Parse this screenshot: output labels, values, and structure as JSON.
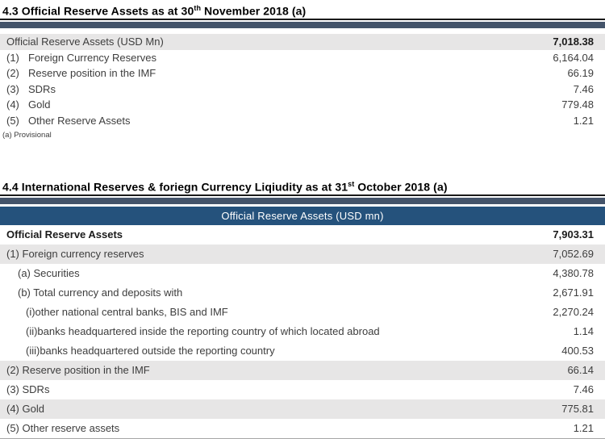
{
  "colors": {
    "title_accent_bar": "#44546A",
    "table_header_bg": "#25527C",
    "table_header_text": "#ffffff",
    "row_shade": "#E7E6E6"
  },
  "section1": {
    "title_prefix": "4.3 Official Reserve Assets as at 30",
    "title_sup": "th",
    "title_suffix": " November 2018 (a)",
    "header_row": {
      "label": "Official Reserve Assets (USD Mn)",
      "value": "7,018.38"
    },
    "rows": [
      {
        "num": "(1)",
        "label": "Foreign Currency Reserves",
        "value": "6,164.04"
      },
      {
        "num": "(2)",
        "label": "Reserve position in the IMF",
        "value": "66.19"
      },
      {
        "num": "(3)",
        "label": "SDRs",
        "value": "7.46"
      },
      {
        "num": "(4)",
        "label": "Gold",
        "value": "779.48"
      },
      {
        "num": "(5)",
        "label": "Other Reserve Assets",
        "value": "1.21"
      }
    ],
    "footnote": "(a) Provisional"
  },
  "section2": {
    "title_prefix": "4.4 International Reserves & foriegn Currency Liqiudity as at 31",
    "title_sup": "st",
    "title_suffix": " October 2018 (a)",
    "table_header": "Official Reserve Assets (USD mn)",
    "rows": [
      {
        "label": "Official Reserve Assets",
        "value": "7,903.31",
        "bold": true,
        "shaded": false,
        "indent": 0
      },
      {
        "label": "(1) Foreign currency reserves",
        "value": "7,052.69",
        "bold": false,
        "shaded": true,
        "indent": 0
      },
      {
        "label": "(a) Securities",
        "value": "4,380.78",
        "bold": false,
        "shaded": false,
        "indent": 1
      },
      {
        "label": "(b) Total currency and deposits with",
        "value": "2,671.91",
        "bold": false,
        "shaded": false,
        "indent": 1
      },
      {
        "label": "(i)other national central banks, BIS and IMF",
        "value": "2,270.24",
        "bold": false,
        "shaded": false,
        "indent": 2
      },
      {
        "label": "(ii)banks headquartered inside the reporting country of which located abroad",
        "value": "1.14",
        "bold": false,
        "shaded": false,
        "indent": 2
      },
      {
        "label": "(iii)banks headquartered outside the reporting country",
        "value": "400.53",
        "bold": false,
        "shaded": false,
        "indent": 2
      },
      {
        "label": "(2) Reserve position in the IMF",
        "value": "66.14",
        "bold": false,
        "shaded": true,
        "indent": 0
      },
      {
        "label": "(3) SDRs",
        "value": "7.46",
        "bold": false,
        "shaded": false,
        "indent": 0
      },
      {
        "label": "(4) Gold",
        "value": "775.81",
        "bold": false,
        "shaded": true,
        "indent": 0
      },
      {
        "label": "(5) Other reserve assets",
        "value": "1.21",
        "bold": false,
        "shaded": false,
        "indent": 0
      }
    ]
  }
}
